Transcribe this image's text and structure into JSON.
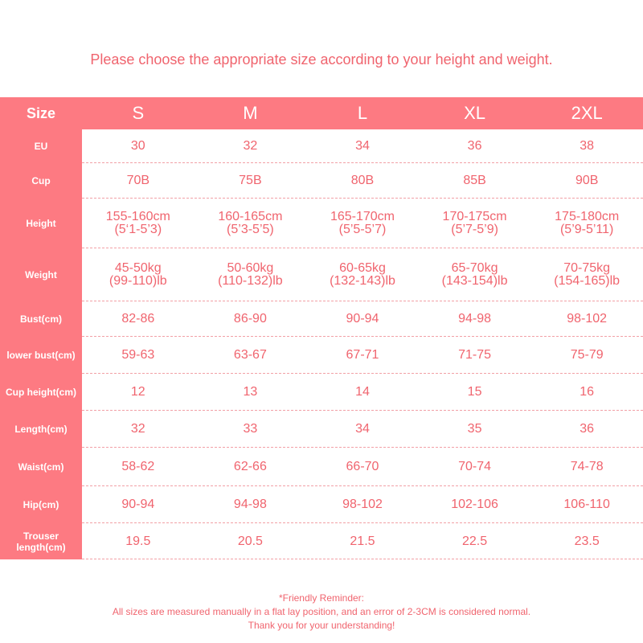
{
  "heading": "Please choose the appropriate size according to your height and weight.",
  "colors": {
    "accent": "#fd7a82",
    "text": "#f0646e"
  },
  "header": {
    "label": "Size",
    "sizes": [
      "S",
      "M",
      "L",
      "XL",
      "2XL"
    ]
  },
  "rows": [
    {
      "label": "EU",
      "values": [
        "30",
        "32",
        "34",
        "36",
        "38"
      ]
    },
    {
      "label": "Cup",
      "values": [
        "70B",
        "75B",
        "80B",
        "85B",
        "90B"
      ]
    },
    {
      "label": "Height",
      "values": [
        "155-160cm",
        "160-165cm",
        "165-170cm",
        "170-175cm",
        "175-180cm"
      ],
      "sub": [
        "(5‘1-5’3)",
        "(5’3-5’5)",
        "(5’5-5’7)",
        "(5’7-5’9)",
        "(5’9-5’11)"
      ]
    },
    {
      "label": "Weight",
      "values": [
        "45-50kg",
        "50-60kg",
        "60-65kg",
        "65-70kg",
        "70-75kg"
      ],
      "sub": [
        "(99-110)lb",
        "(110-132)lb",
        "(132-143)lb",
        "(143-154)lb",
        "(154-165)lb"
      ]
    },
    {
      "label": "Bust(cm)",
      "values": [
        "82-86",
        "86-90",
        "90-94",
        "94-98",
        "98-102"
      ]
    },
    {
      "label": "lower bust(cm)",
      "values": [
        "59-63",
        "63-67",
        "67-71",
        "71-75",
        "75-79"
      ]
    },
    {
      "label": "Cup height(cm)",
      "values": [
        "12",
        "13",
        "14",
        "15",
        "16"
      ]
    },
    {
      "label": "Length(cm)",
      "values": [
        "32",
        "33",
        "34",
        "35",
        "36"
      ]
    },
    {
      "label": "Waist(cm)",
      "values": [
        "58-62",
        "62-66",
        "66-70",
        "70-74",
        "74-78"
      ]
    },
    {
      "label": "Hip(cm)",
      "values": [
        "90-94",
        "94-98",
        "98-102",
        "102-106",
        "106-110"
      ]
    },
    {
      "label": "Trouser length(cm)",
      "values": [
        "19.5",
        "20.5",
        "21.5",
        "22.5",
        "23.5"
      ]
    }
  ],
  "footer": {
    "line1": "*Friendly Reminder:",
    "line2": "All sizes are measured manually in a flat lay position, and an error of 2-3CM is considered normal.",
    "line3": "Thank you for your understanding!"
  }
}
